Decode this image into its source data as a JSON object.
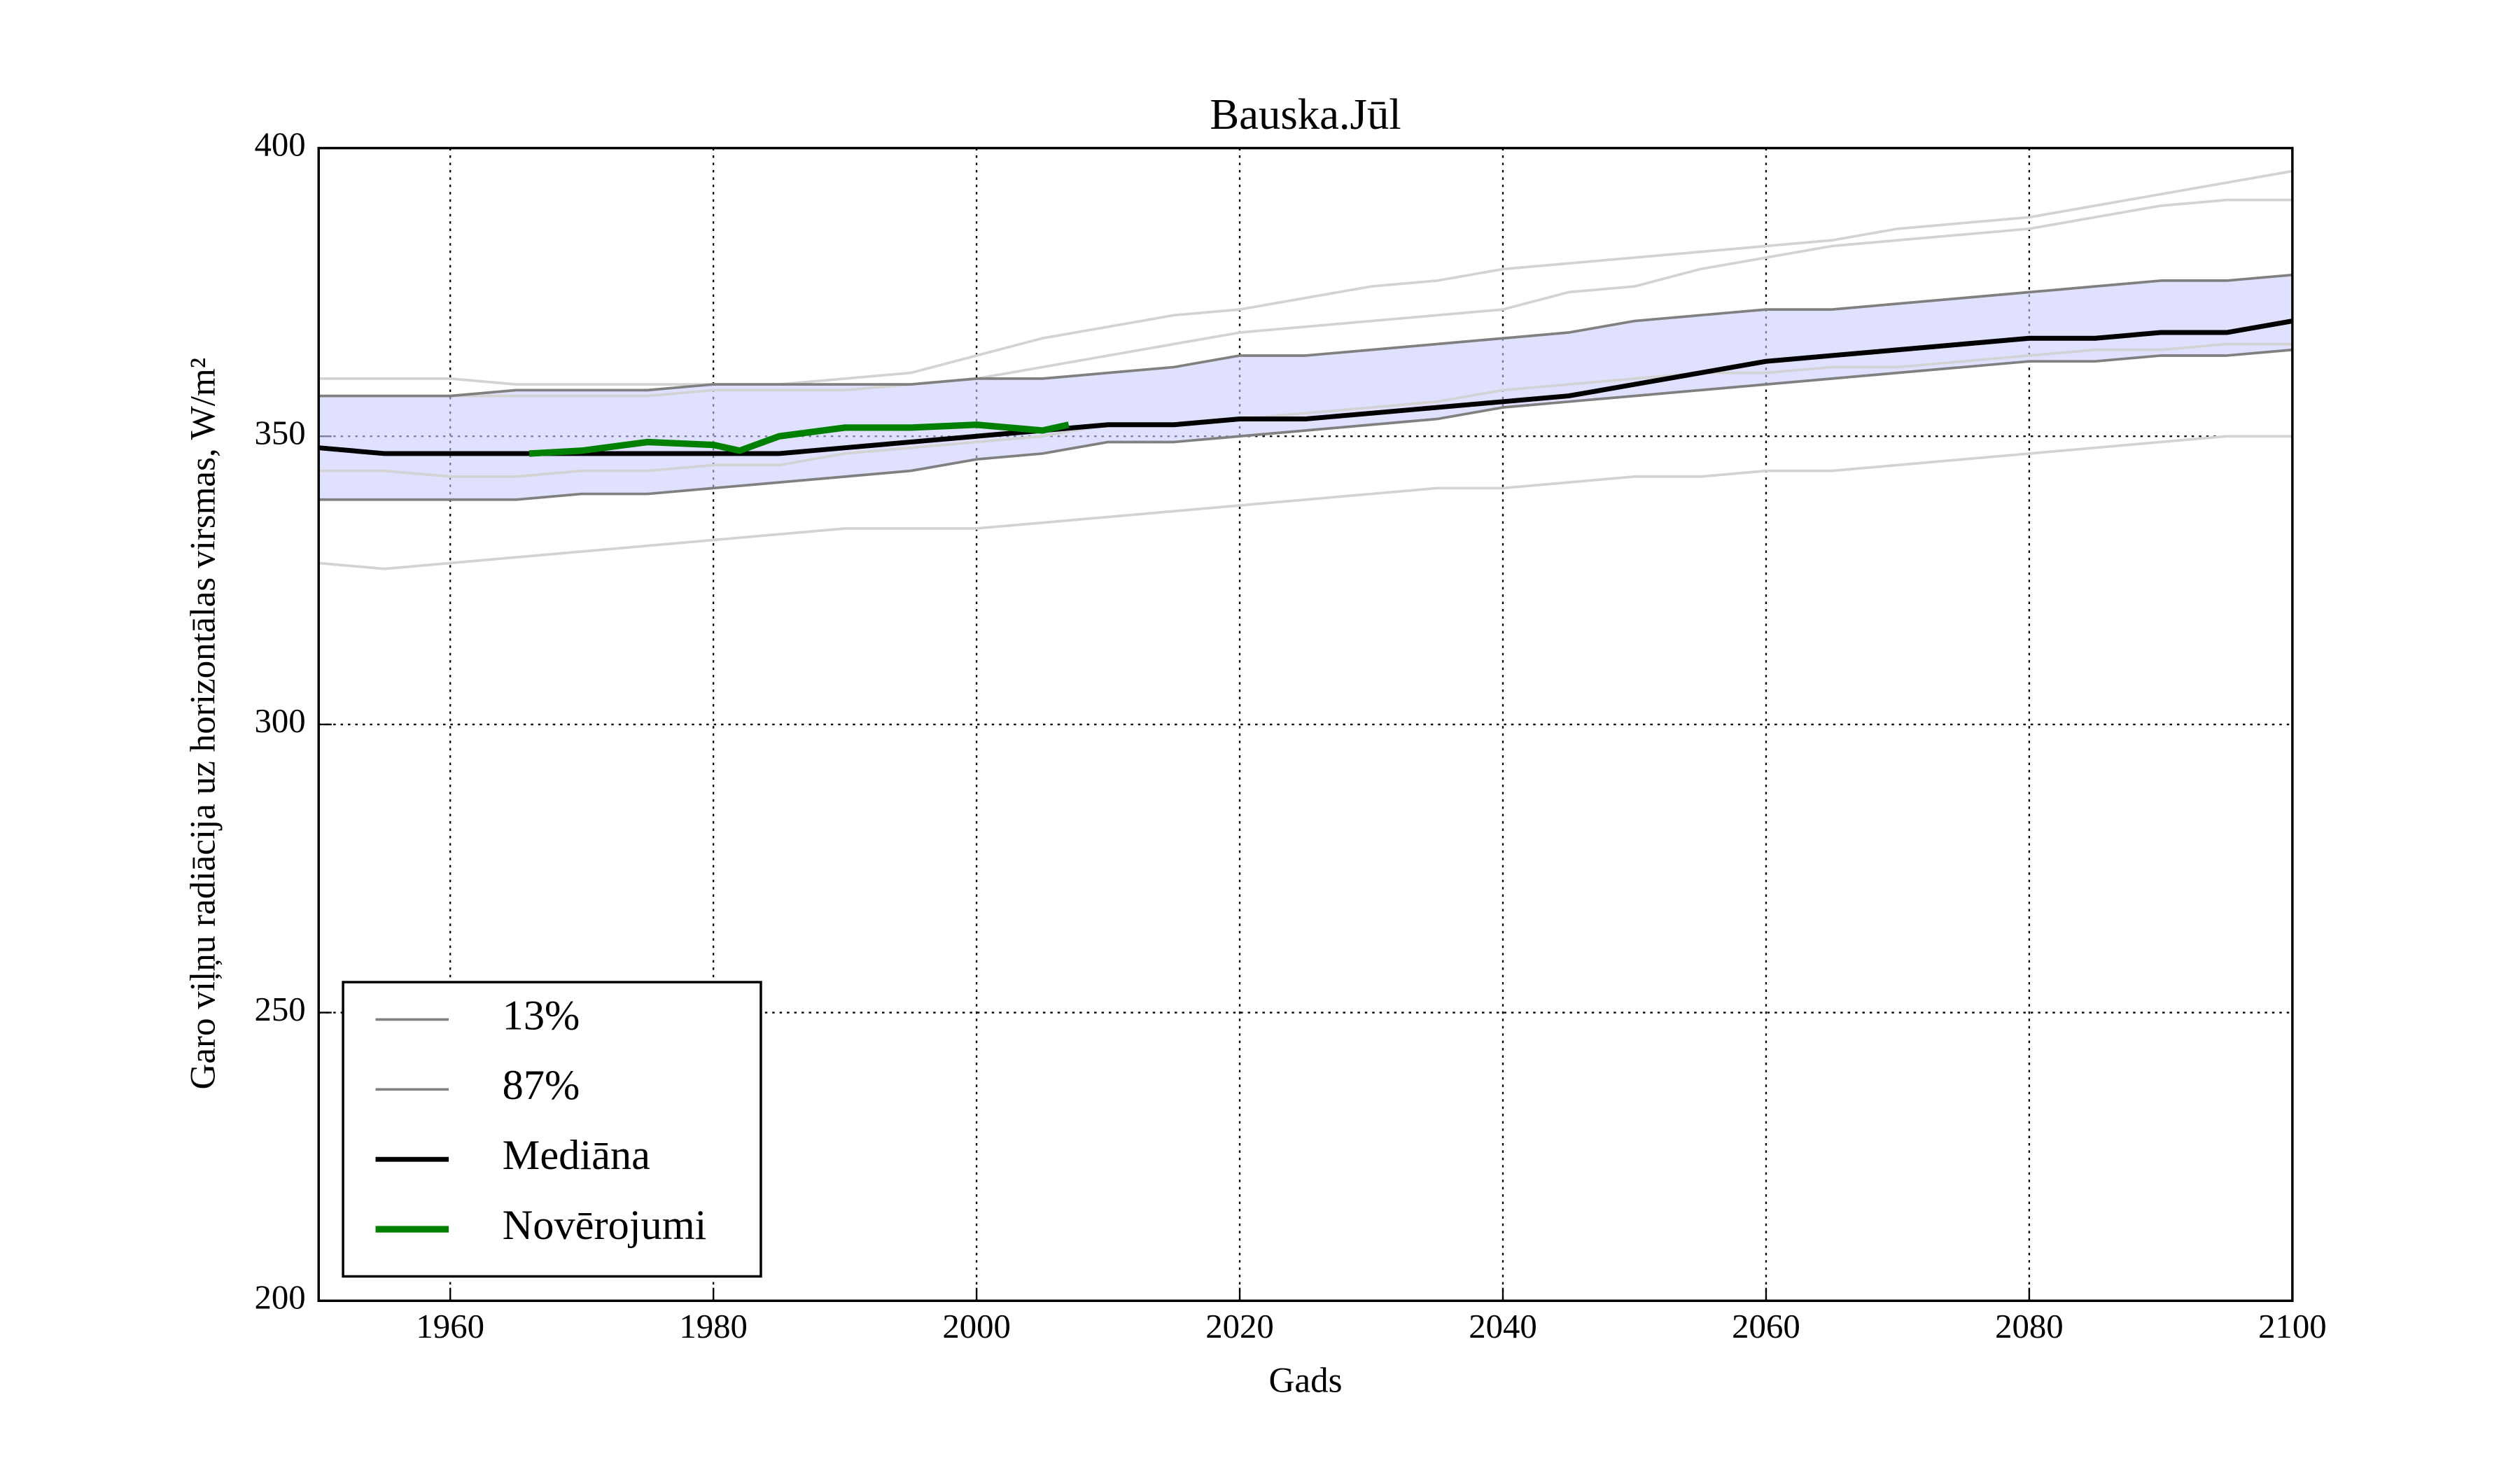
{
  "chart_data": {
    "type": "line",
    "title": "Bauska.Jūl",
    "x_label": "Gads",
    "y_label": "Garo viļņu radiācija uz horizontālas virsmas, W/m²",
    "x": [
      1950,
      1955,
      1960,
      1965,
      1970,
      1975,
      1980,
      1985,
      1990,
      1995,
      2000,
      2005,
      2010,
      2015,
      2020,
      2025,
      2030,
      2035,
      2040,
      2045,
      2050,
      2055,
      2060,
      2065,
      2070,
      2075,
      2080,
      2085,
      2090,
      2095,
      2100
    ],
    "series": [
      {
        "color": "#d3d3d3",
        "values": [
          360,
          360,
          360,
          359,
          359,
          359,
          359,
          359,
          360,
          361,
          364,
          367,
          369,
          371,
          372,
          374,
          376,
          377,
          379,
          380,
          381,
          382,
          383,
          384,
          386,
          387,
          388,
          390,
          392,
          394,
          396
        ]
      },
      {
        "color": "#d3d3d3",
        "values": [
          357,
          357,
          357,
          357,
          357,
          357,
          358,
          358,
          358,
          359,
          360,
          362,
          364,
          366,
          368,
          369,
          370,
          371,
          372,
          375,
          376,
          379,
          381,
          383,
          384,
          385,
          386,
          388,
          390,
          391,
          391
        ]
      },
      {
        "color": "#d3d3d3",
        "values": [
          344,
          344,
          343,
          343,
          344,
          344,
          345,
          345,
          347,
          348,
          349,
          350,
          352,
          352,
          353,
          354,
          355,
          356,
          358,
          359,
          360,
          361,
          361,
          362,
          362,
          363,
          364,
          365,
          365,
          366,
          366
        ]
      },
      {
        "color": "#d3d3d3",
        "values": [
          328,
          327,
          328,
          329,
          330,
          331,
          332,
          333,
          334,
          334,
          334,
          335,
          336,
          337,
          338,
          339,
          340,
          341,
          341,
          342,
          343,
          343,
          344,
          344,
          345,
          346,
          347,
          348,
          349,
          350,
          350
        ]
      },
      {
        "name": "13%",
        "color": "#808080",
        "values": [
          339,
          339,
          339,
          339,
          340,
          340,
          341,
          342,
          343,
          344,
          346,
          347,
          349,
          349,
          350,
          351,
          352,
          353,
          355,
          356,
          357,
          358,
          359,
          360,
          361,
          362,
          363,
          363,
          364,
          364,
          365
        ]
      },
      {
        "name": "87%",
        "color": "#808080",
        "values": [
          357,
          357,
          357,
          358,
          358,
          358,
          359,
          359,
          359,
          359,
          360,
          360,
          361,
          362,
          364,
          364,
          365,
          366,
          367,
          368,
          370,
          371,
          372,
          372,
          373,
          374,
          375,
          376,
          377,
          377,
          378
        ]
      },
      {
        "name": "Mediāna",
        "color": "#000000",
        "values": [
          348,
          347,
          347,
          347,
          347,
          347,
          347,
          347,
          348,
          349,
          350,
          351,
          352,
          352,
          353,
          353,
          354,
          355,
          356,
          357,
          359,
          361,
          363,
          364,
          365,
          366,
          367,
          367,
          368,
          368,
          370
        ]
      },
      {
        "name": "Novērojumi",
        "color": "#008000",
        "x": [
          1966,
          1970,
          1975,
          1980,
          1982,
          1985,
          1990,
          1995,
          2000,
          2005,
          2007
        ],
        "values": [
          347,
          347.5,
          349,
          348.5,
          347.5,
          350,
          351.5,
          351.5,
          352,
          351,
          352
        ]
      }
    ],
    "band_color": "#ccccff",
    "xlim": [
      1950,
      2100
    ],
    "xticks": [
      1960,
      1980,
      2000,
      2020,
      2040,
      2060,
      2080,
      2100
    ],
    "ylim": [
      200,
      400
    ],
    "yticks": [
      200,
      250,
      300,
      350,
      400
    ],
    "grid": true,
    "legend": "lower left"
  }
}
